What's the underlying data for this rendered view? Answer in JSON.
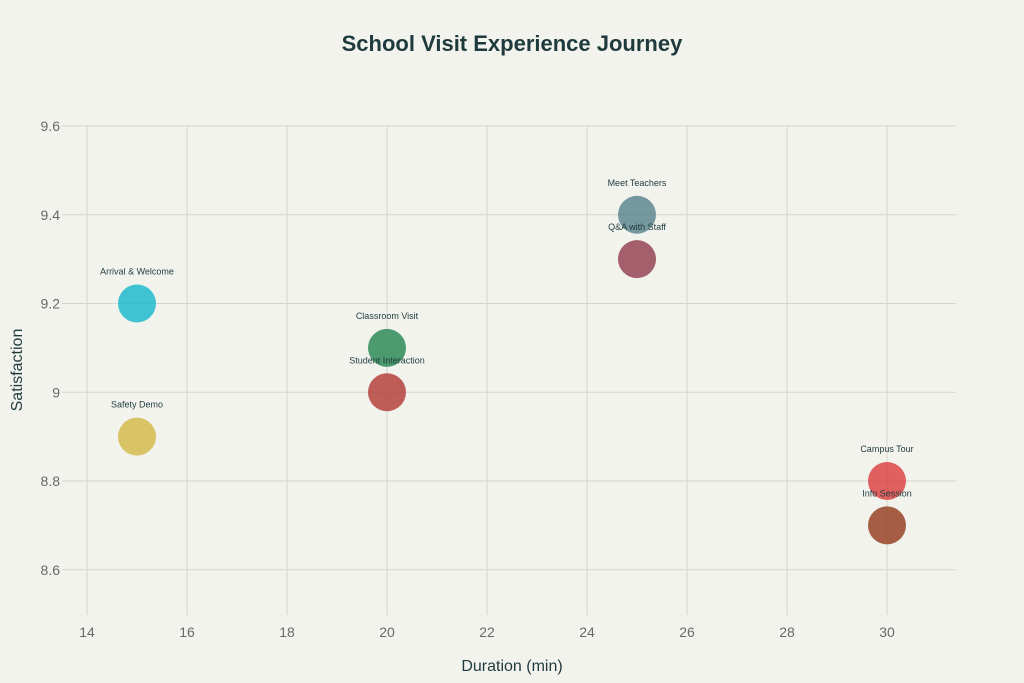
{
  "chart_data": {
    "type": "scatter",
    "title": "School Visit Experience Journey",
    "xlabel": "Duration (min)",
    "ylabel": "Satisfaction",
    "xlim": [
      13.5,
      31.38
    ],
    "ylim": [
      8.5,
      9.6
    ],
    "xticks": [
      14,
      16,
      18,
      20,
      22,
      24,
      26,
      28,
      30
    ],
    "yticks": [
      8.6,
      8.8,
      9,
      9.2,
      9.4,
      9.6
    ],
    "ytick_labels": [
      "8.6",
      "8.8",
      "9",
      "9.2",
      "9.4",
      "9.6"
    ],
    "grid": true,
    "points": [
      {
        "label": "Arrival & Welcome",
        "x": 15,
        "y": 9.2,
        "color": "#1FB8CD"
      },
      {
        "label": "Safety Demo",
        "x": 15,
        "y": 8.9,
        "color": "#D2BA4C"
      },
      {
        "label": "Classroom Visit",
        "x": 20,
        "y": 9.1,
        "color": "#2E8B57"
      },
      {
        "label": "Student Interaction",
        "x": 20,
        "y": 9.0,
        "color": "#B4413C"
      },
      {
        "label": "Meet Teachers",
        "x": 25,
        "y": 9.4,
        "color": "#5D878F"
      },
      {
        "label": "Q&A with Staff",
        "x": 25,
        "y": 9.3,
        "color": "#944454"
      },
      {
        "label": "Campus Tour",
        "x": 30,
        "y": 8.8,
        "color": "#DB4545"
      },
      {
        "label": "Info Session",
        "x": 30,
        "y": 8.7,
        "color": "#964325"
      }
    ]
  }
}
